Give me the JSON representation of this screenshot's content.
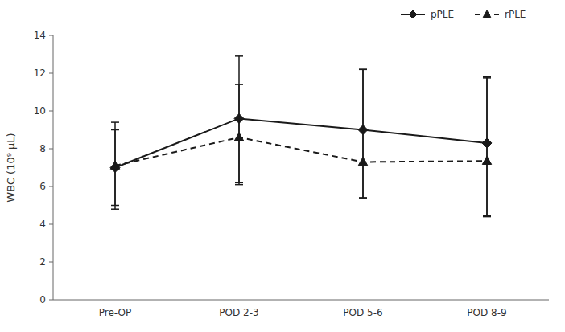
{
  "chart_data": {
    "type": "line",
    "categories": [
      "Pre-OP",
      "POD 2-3",
      "POD 5-6",
      "POD 8-9"
    ],
    "y_label": "WBC (10⁹ μL)",
    "ylim": [
      0,
      14
    ],
    "yticks": [
      0,
      2,
      4,
      6,
      8,
      10,
      12,
      14
    ],
    "grid": false,
    "legend": "upper right",
    "series": [
      {
        "name": "pPLE",
        "color": "#1a1a1a",
        "marker": "diamond",
        "line_style": "solid",
        "values": [
          7.0,
          9.6,
          9.0,
          8.3
        ],
        "err_lower": [
          2.2,
          3.4,
          3.6,
          3.9
        ],
        "err_upper": [
          2.4,
          3.3,
          3.2,
          3.5
        ]
      },
      {
        "name": "rPLE",
        "color": "#1a1a1a",
        "marker": "triangle",
        "line_style": "dashed",
        "values": [
          7.1,
          8.6,
          7.3,
          7.35
        ],
        "err_lower": [
          2.1,
          2.5,
          1.9,
          2.9
        ],
        "err_upper": [
          1.9,
          2.8,
          4.9,
          4.4
        ]
      }
    ]
  }
}
